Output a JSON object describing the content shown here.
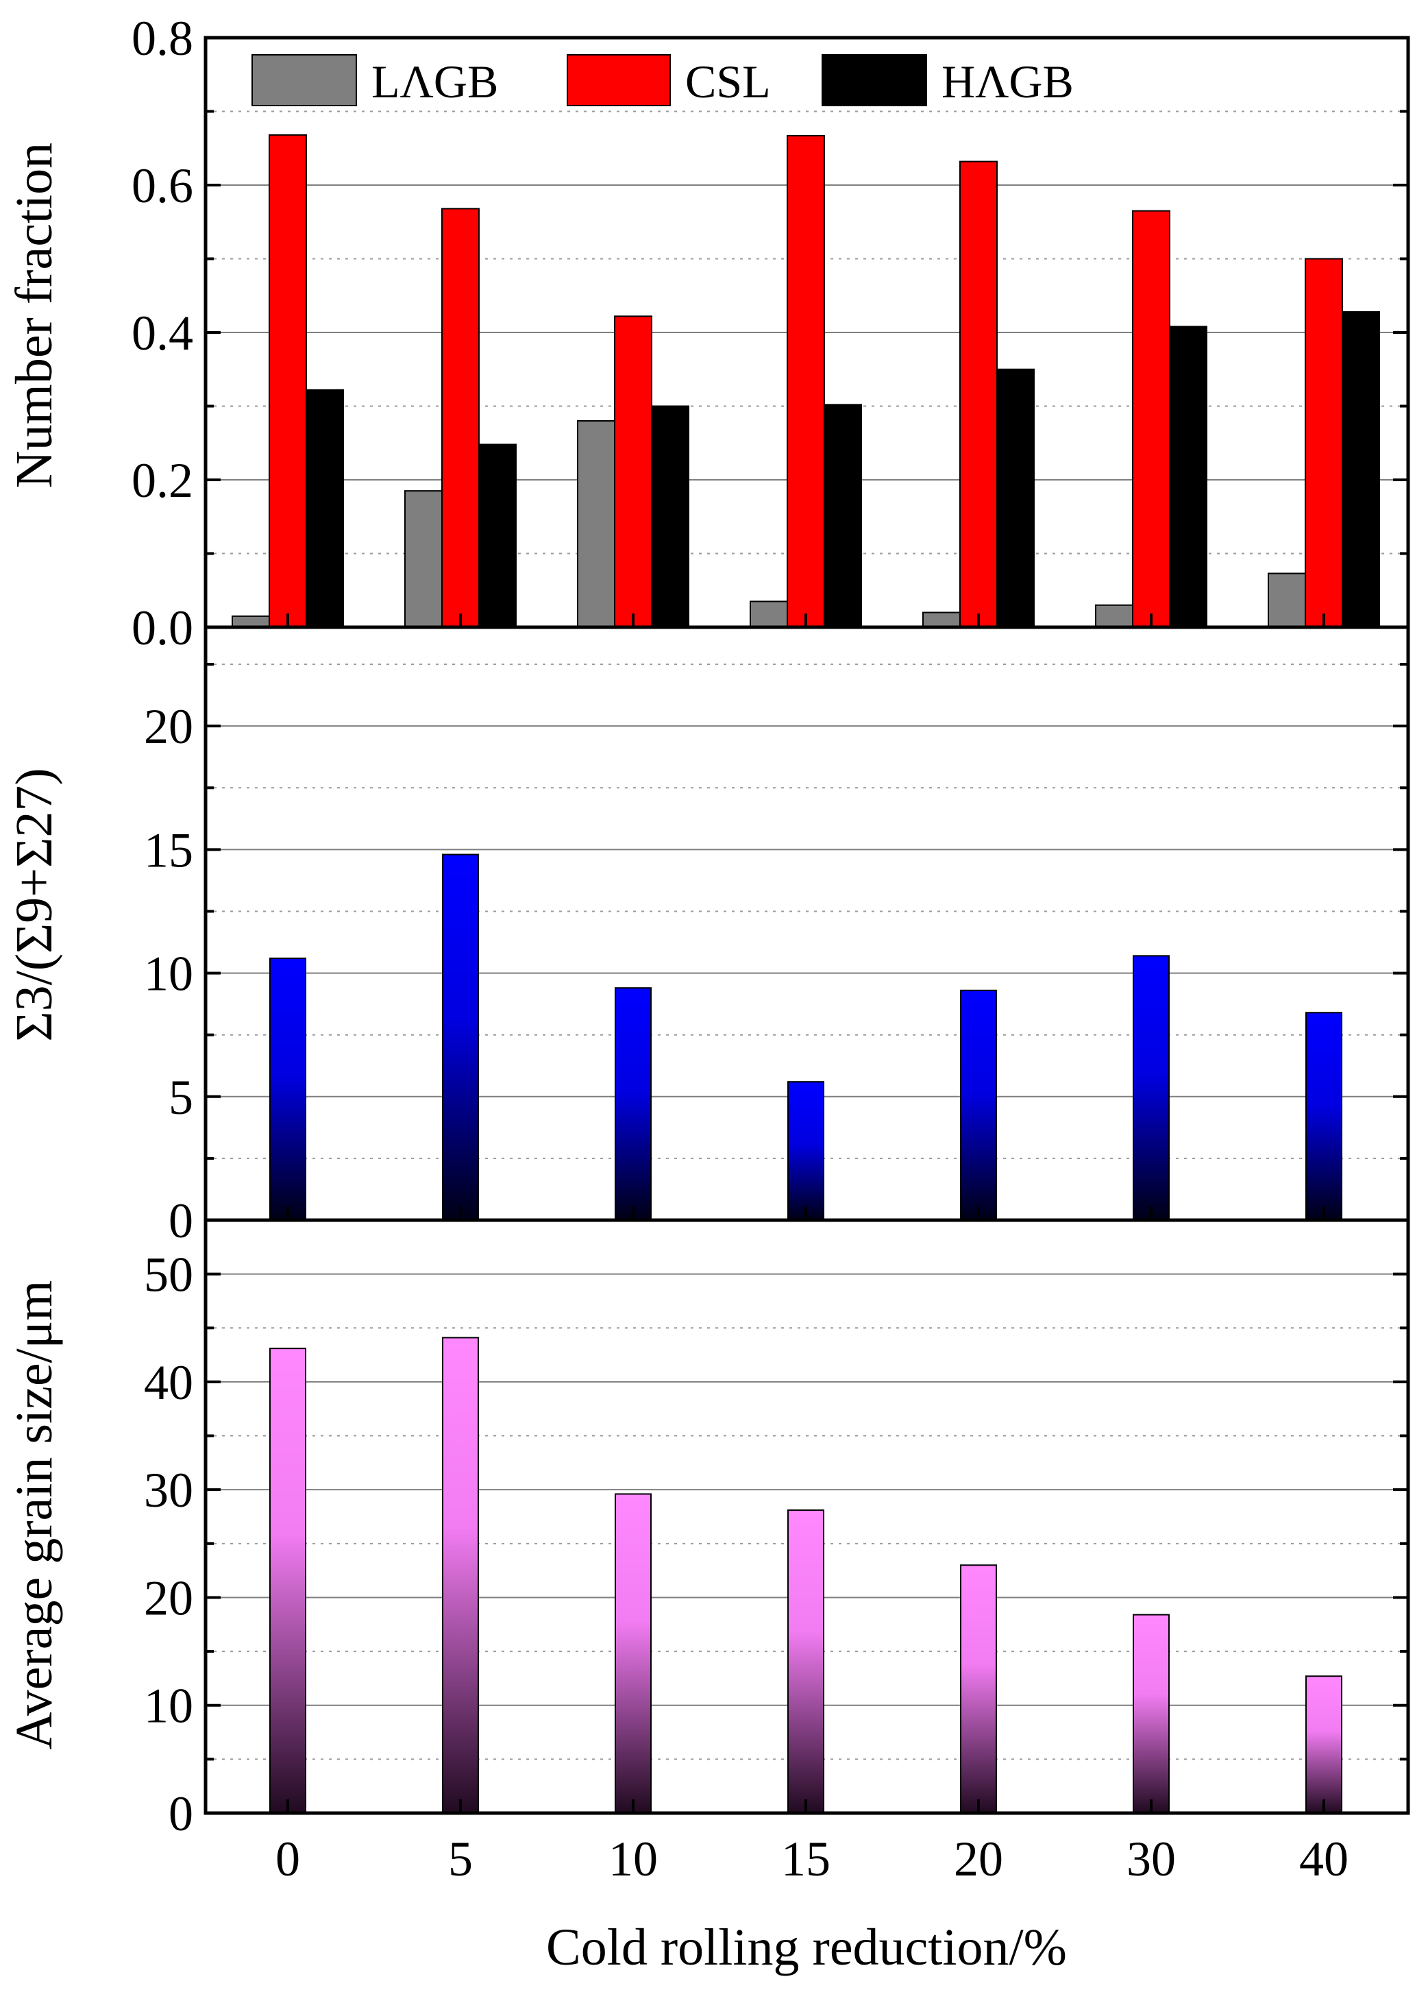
{
  "chart_data": [
    {
      "type": "bar",
      "ylabel": "Number fraction",
      "xlabel": "Cold rolling reduction/%",
      "categories": [
        "0",
        "5",
        "10",
        "15",
        "20",
        "30",
        "40"
      ],
      "ylim": [
        0,
        0.8
      ],
      "yticks": [
        "0.0",
        "0.2",
        "0.4",
        "0.6",
        "0.8"
      ],
      "ytick_values": [
        0,
        0.2,
        0.4,
        0.6,
        0.8
      ],
      "grid": true,
      "legend_position": "top",
      "series": [
        {
          "name": "LAGB",
          "label": "LΛGB",
          "color": "#7f7f7f",
          "values": [
            0.015,
            0.185,
            0.28,
            0.035,
            0.02,
            0.03,
            0.073
          ]
        },
        {
          "name": "CSL",
          "label": "CSL",
          "color": "#ff0000",
          "values": [
            0.668,
            0.568,
            0.422,
            0.667,
            0.632,
            0.565,
            0.5
          ]
        },
        {
          "name": "HAGB",
          "label": "HΛGB",
          "color": "#000000",
          "values": [
            0.322,
            0.248,
            0.3,
            0.302,
            0.35,
            0.408,
            0.428
          ]
        }
      ]
    },
    {
      "type": "bar",
      "ylabel": "Σ3/(Σ9+Σ27)",
      "xlabel": "Cold rolling reduction/%",
      "categories": [
        "0",
        "5",
        "10",
        "15",
        "20",
        "30",
        "40"
      ],
      "ylim": [
        0,
        24
      ],
      "yticks": [
        "0",
        "5",
        "10",
        "15",
        "20"
      ],
      "ytick_values": [
        0,
        5,
        10,
        15,
        20
      ],
      "grid": true,
      "series": [
        {
          "name": "Σ3/(Σ9+Σ27)",
          "color": "#0000ff",
          "values": [
            10.6,
            14.8,
            9.4,
            5.6,
            9.3,
            10.7,
            8.4
          ]
        }
      ]
    },
    {
      "type": "bar",
      "ylabel": "Average grain size/μm",
      "xlabel": "Cold rolling reduction/%",
      "categories": [
        "0",
        "5",
        "10",
        "15",
        "20",
        "30",
        "40"
      ],
      "ylim": [
        0,
        55
      ],
      "yticks": [
        "0",
        "10",
        "20",
        "30",
        "40",
        "50"
      ],
      "ytick_values": [
        0,
        10,
        20,
        30,
        40,
        50
      ],
      "grid": true,
      "series": [
        {
          "name": "Average grain size",
          "color": "#ff80ff",
          "values": [
            43.1,
            44.1,
            29.6,
            28.1,
            23.0,
            18.4,
            12.7
          ]
        }
      ]
    }
  ]
}
